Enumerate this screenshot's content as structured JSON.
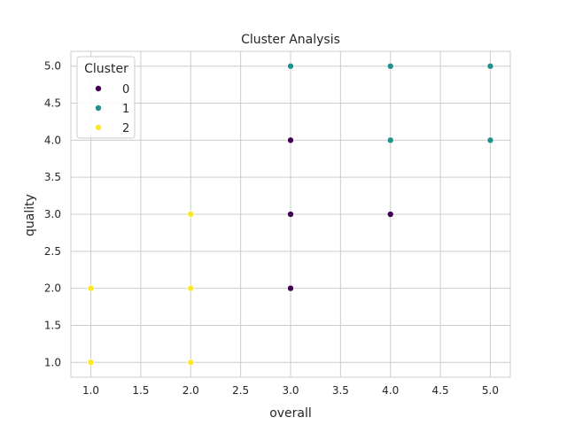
{
  "chart_data": {
    "type": "scatter",
    "title": "Cluster Analysis",
    "xlabel": "overall",
    "ylabel": "quality",
    "xlim": [
      0.8,
      5.2
    ],
    "ylim": [
      0.8,
      5.2
    ],
    "xticks": [
      "1.0",
      "1.5",
      "2.0",
      "2.5",
      "3.0",
      "3.5",
      "4.0",
      "4.5",
      "5.0"
    ],
    "yticks": [
      "1.0",
      "1.5",
      "2.0",
      "2.5",
      "3.0",
      "3.5",
      "4.0",
      "4.5",
      "5.0"
    ],
    "grid": true,
    "legend": {
      "title": "Cluster",
      "placement": "top-left"
    },
    "series": [
      {
        "name": "0",
        "color": "#440154",
        "points": [
          [
            3,
            4
          ],
          [
            3,
            3
          ],
          [
            4,
            3
          ],
          [
            3,
            2
          ]
        ]
      },
      {
        "name": "1",
        "color": "#21918c",
        "points": [
          [
            3,
            5
          ],
          [
            4,
            5
          ],
          [
            5,
            5
          ],
          [
            4,
            4
          ],
          [
            5,
            4
          ]
        ]
      },
      {
        "name": "2",
        "color": "#fde725",
        "points": [
          [
            2,
            3
          ],
          [
            1,
            2
          ],
          [
            2,
            2
          ],
          [
            1,
            1
          ],
          [
            2,
            1
          ]
        ]
      }
    ]
  }
}
